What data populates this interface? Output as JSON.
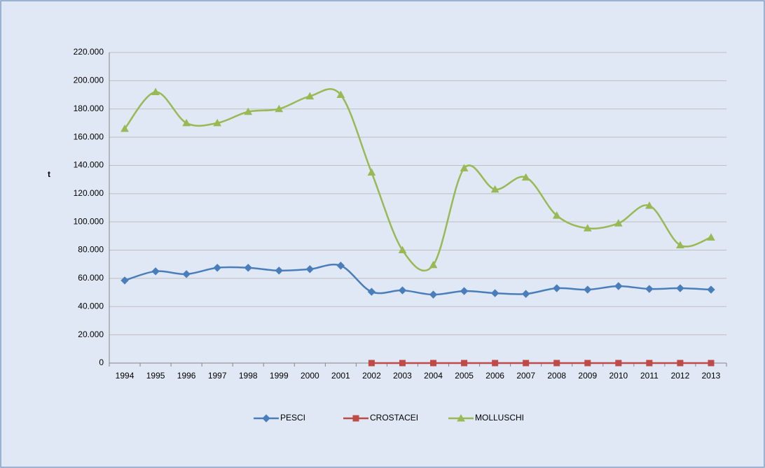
{
  "chart_data": {
    "type": "line",
    "y_label": "t",
    "categories": [
      "1994",
      "1995",
      "1996",
      "1997",
      "1998",
      "1999",
      "2000",
      "2001",
      "2002",
      "2003",
      "2004",
      "2005",
      "2006",
      "2007",
      "2008",
      "2009",
      "2010",
      "2011",
      "2012",
      "2013"
    ],
    "series": [
      {
        "name": "PESCI",
        "color": "#4a7ebb",
        "marker": "diamond",
        "values": [
          58500,
          65000,
          63000,
          67500,
          67500,
          65500,
          66500,
          69000,
          50500,
          51500,
          48500,
          51000,
          49500,
          49000,
          53000,
          52000,
          54500,
          52500,
          53000,
          52000
        ]
      },
      {
        "name": "CROSTACEI",
        "color": "#be4b48",
        "marker": "square",
        "values": [
          null,
          null,
          null,
          null,
          null,
          null,
          null,
          null,
          0,
          0,
          0,
          0,
          0,
          0,
          0,
          0,
          0,
          0,
          0,
          0
        ]
      },
      {
        "name": "MOLLUSCHI",
        "color": "#98b954",
        "marker": "triangle",
        "values": [
          166000,
          192000,
          170000,
          170000,
          178000,
          180000,
          189000,
          190000,
          135000,
          80000,
          69500,
          138000,
          123000,
          131500,
          104500,
          95500,
          99000,
          111500,
          83500,
          89000
        ]
      }
    ],
    "ylim": [
      0,
      220000
    ],
    "yticks": [
      0,
      {
        "value": 20000,
        "label": "20.000"
      },
      {
        "value": 40000,
        "label": "40.000"
      },
      {
        "value": 60000,
        "label": "60.000"
      },
      {
        "value": 80000,
        "label": "80.000"
      },
      {
        "value": 100000,
        "label": "100.000"
      },
      {
        "value": 120000,
        "label": "120.000"
      },
      {
        "value": 140000,
        "label": "140.000"
      },
      {
        "value": 160000,
        "label": "160.000"
      },
      {
        "value": 180000,
        "label": "180.000"
      },
      {
        "value": 200000,
        "label": "200.000"
      },
      {
        "value": 220000,
        "label": "220.000"
      }
    ],
    "grid": true,
    "smooth": true,
    "legend": "bottom"
  }
}
